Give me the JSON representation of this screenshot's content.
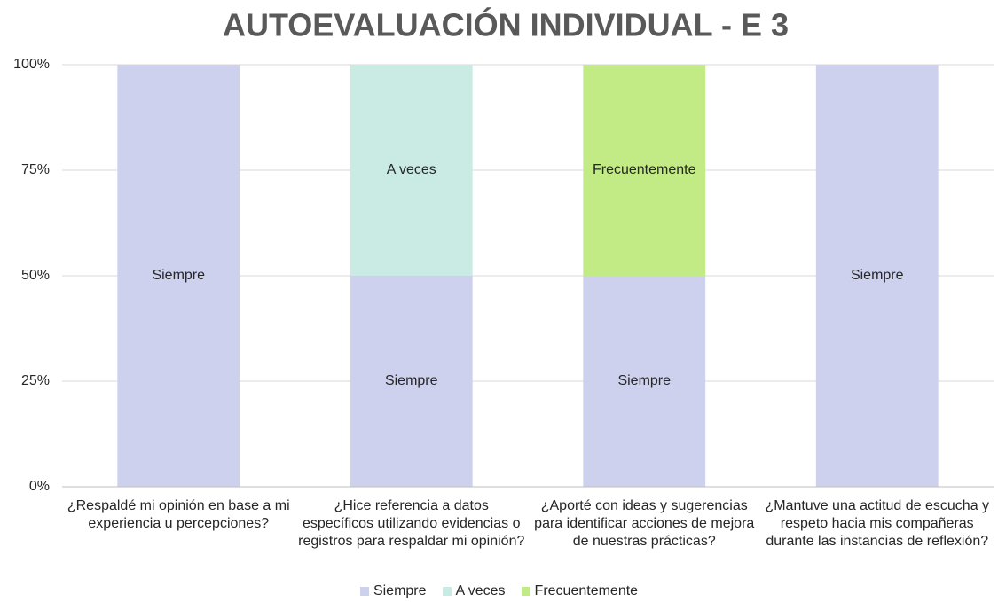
{
  "chart_data": {
    "type": "stacked_bar",
    "title": "AUTOEVALUACIÓN INDIVIDUAL - E 3",
    "categories": [
      "¿Respaldé mi opinión en base a mi experiencia u percepciones?",
      "¿Hice referencia a datos específicos utilizando evidencias o registros para respaldar mi opinión?",
      "¿Aporté con ideas y sugerencias para identificar acciones de mejora de nuestras prácticas?",
      "¿Mantuve una actitud de escucha y respeto hacia mis compañeras durante las instancias de reflexión?"
    ],
    "series": [
      {
        "name": "Siempre",
        "color": "#cdd1ee",
        "values": [
          100,
          50,
          50,
          100
        ]
      },
      {
        "name": "A veces",
        "color": "#c9ebe4",
        "values": [
          0,
          50,
          0,
          0
        ]
      },
      {
        "name": "Frecuentemente",
        "color": "#c2eb86",
        "values": [
          0,
          0,
          50,
          0
        ]
      }
    ],
    "ylim": [
      0,
      100
    ],
    "yticks": [
      {
        "value": 0,
        "label": "0%"
      },
      {
        "value": 25,
        "label": "25%"
      },
      {
        "value": 50,
        "label": "50%"
      },
      {
        "value": 75,
        "label": "75%"
      },
      {
        "value": 100,
        "label": "100%"
      }
    ],
    "grid": true,
    "legend": "bottom"
  }
}
